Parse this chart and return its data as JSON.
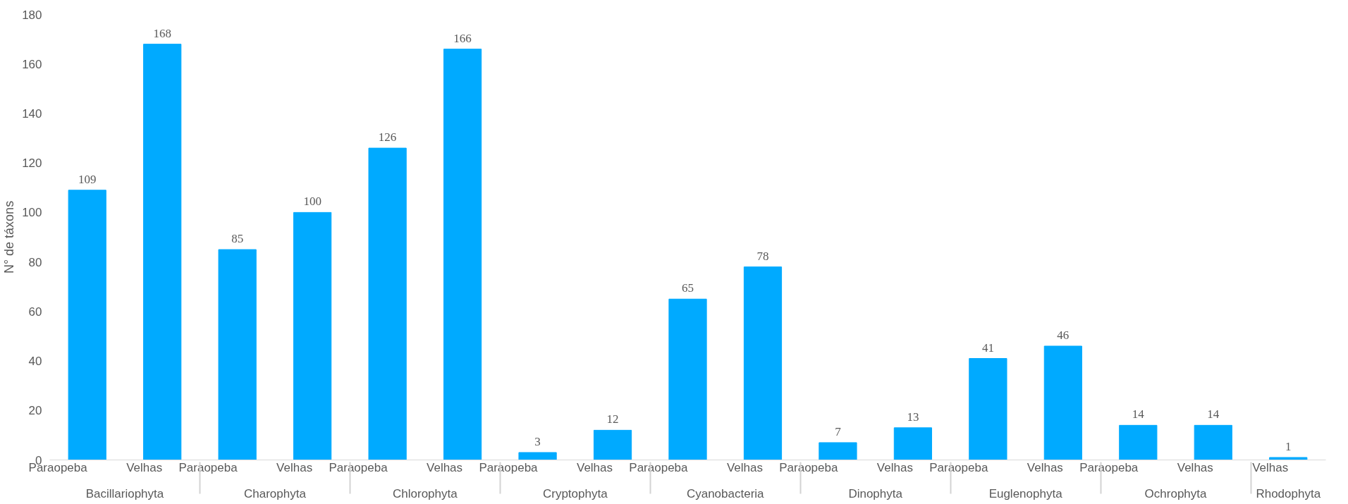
{
  "chart_data": {
    "type": "bar",
    "ylabel": "N° de táxons",
    "categories": [
      "Bacillariophyta",
      "Charophyta",
      "Chlorophyta",
      "Cryptophyta",
      "Cyanobacteria",
      "Dinophyta",
      "Euglenophyta",
      "Ochrophyta",
      "Rhodophyta"
    ],
    "series": [
      {
        "name": "Paraopeba",
        "color": "#00aaff",
        "values": [
          109,
          85,
          126,
          3,
          65,
          7,
          41,
          14,
          null
        ]
      },
      {
        "name": "Velhas",
        "color": "#00aaff",
        "values": [
          168,
          100,
          166,
          12,
          78,
          13,
          46,
          14,
          1
        ]
      }
    ],
    "ylim": [
      0,
      180
    ],
    "yticks": [
      0,
      20,
      40,
      60,
      80,
      100,
      120,
      140,
      160,
      180
    ],
    "grid": false,
    "data_labels": true
  }
}
